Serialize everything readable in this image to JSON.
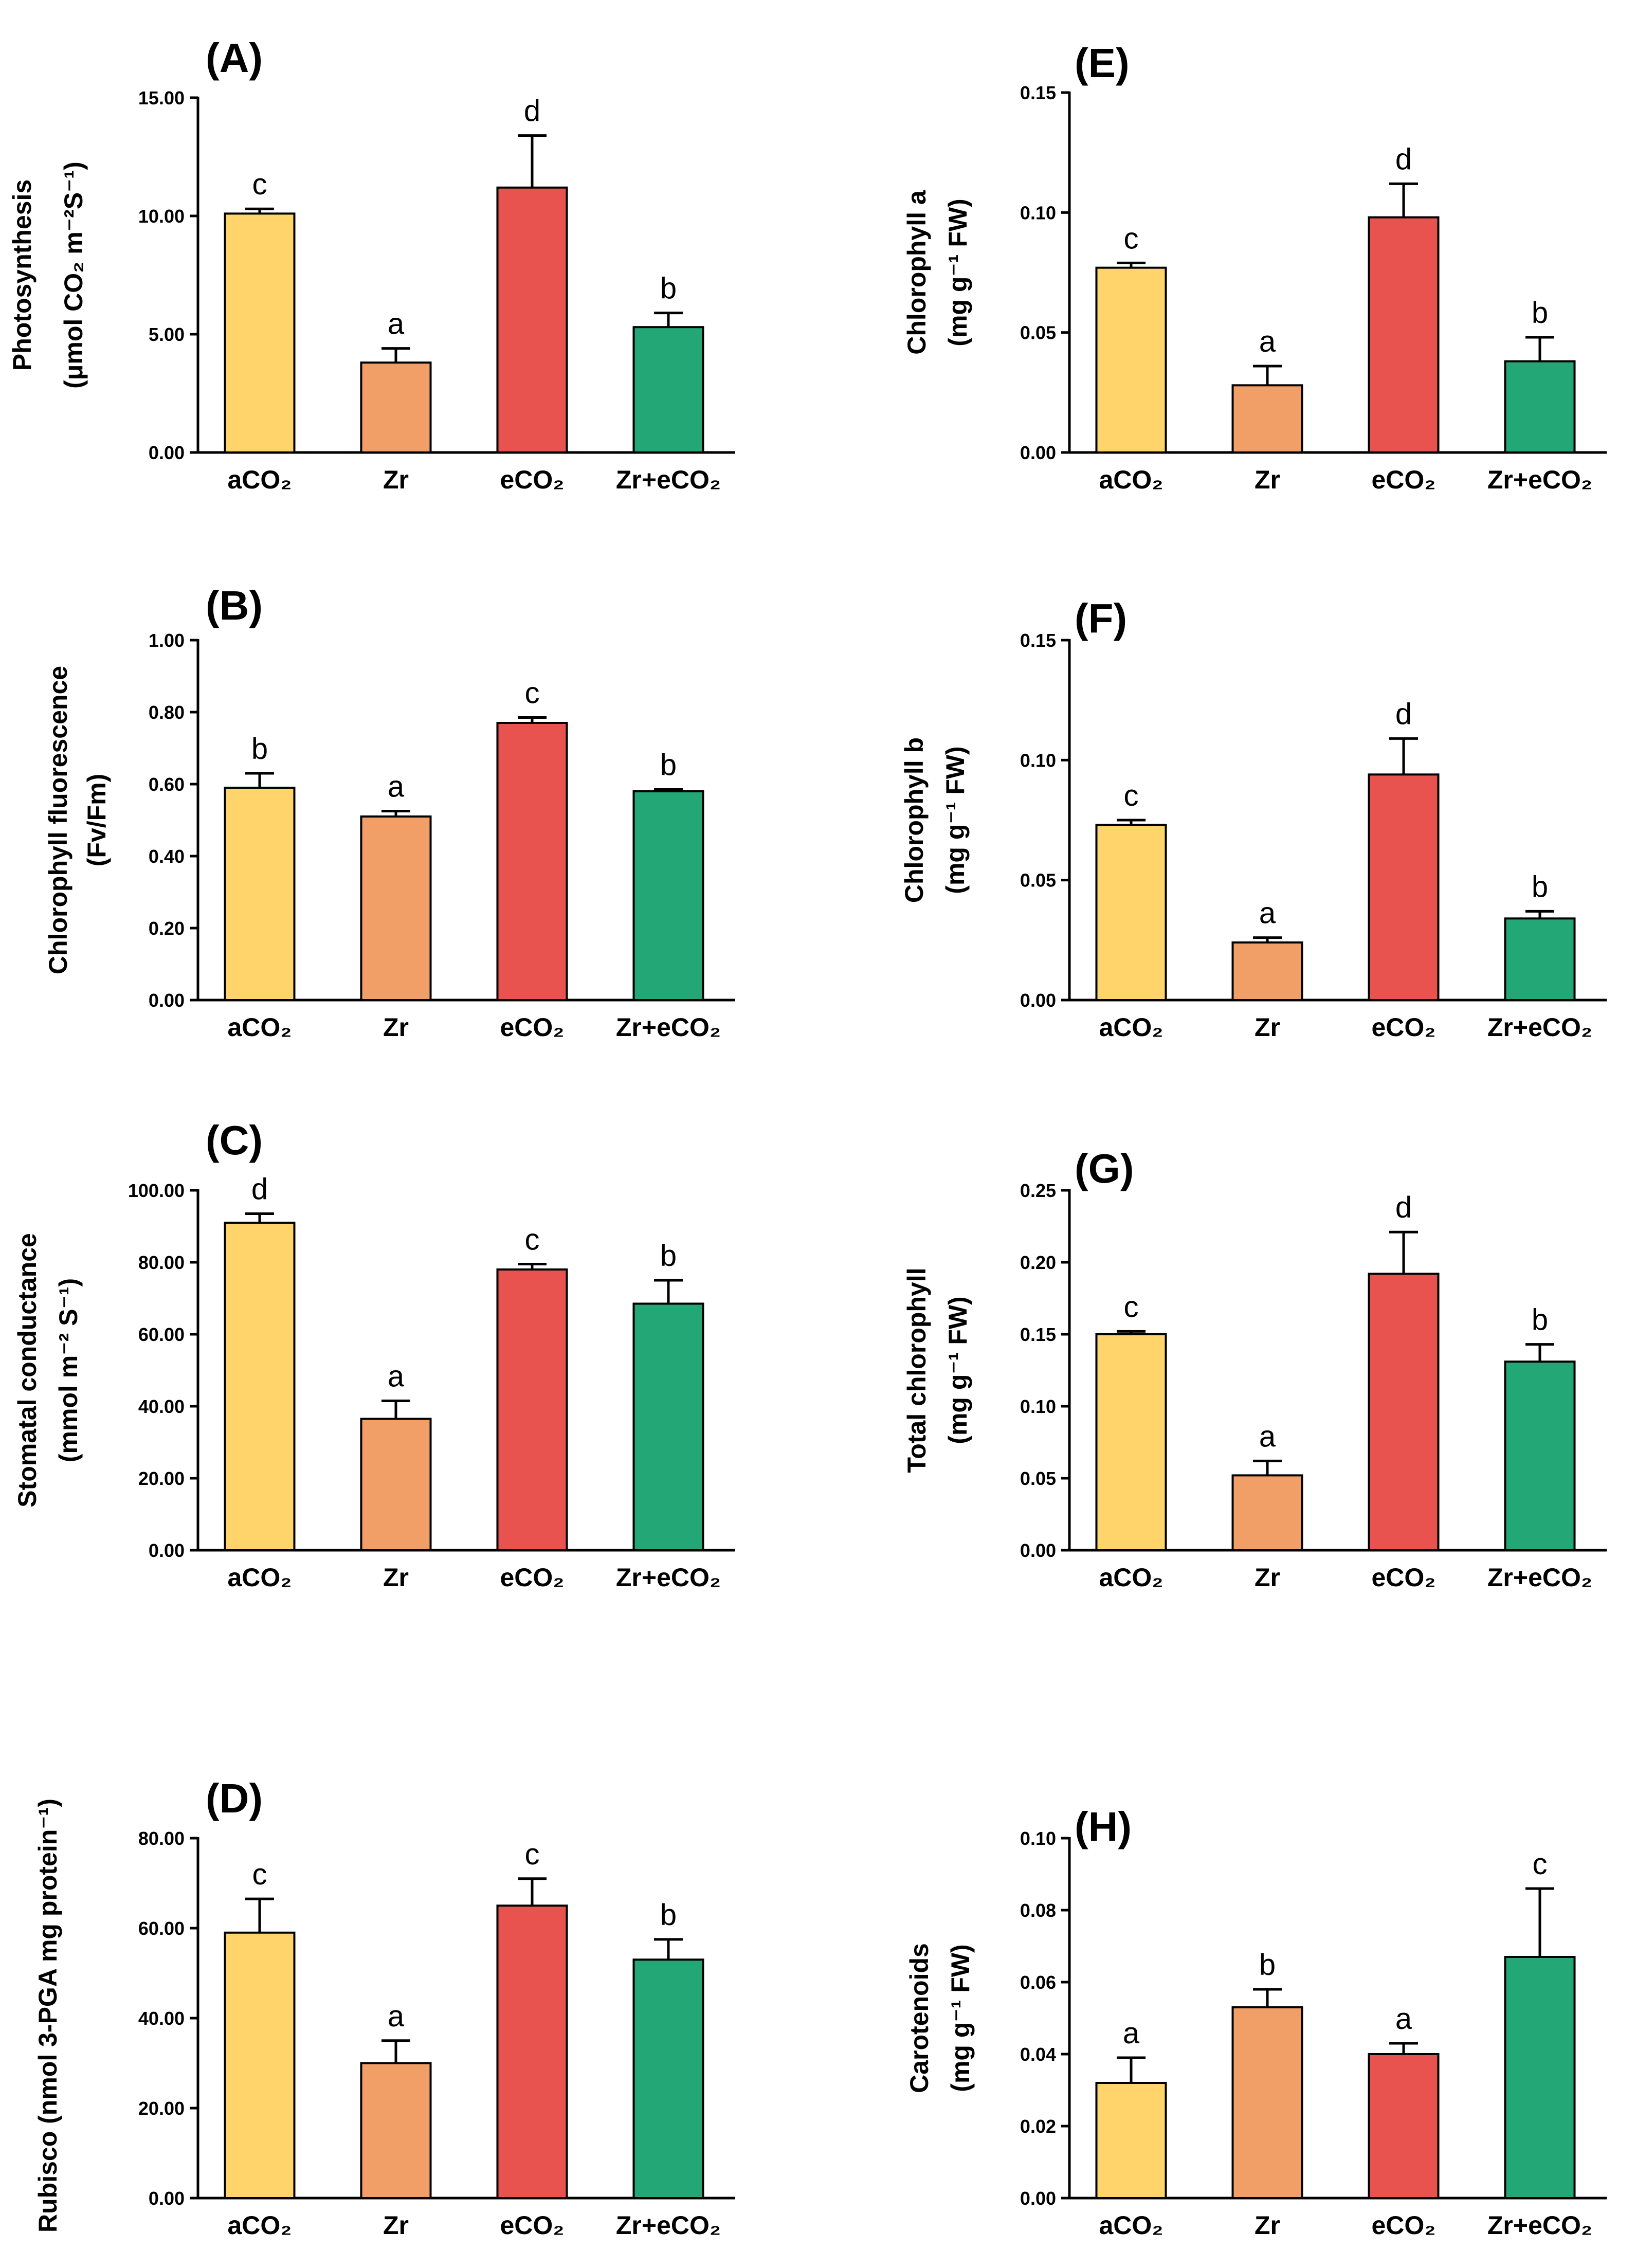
{
  "figure": {
    "colors": [
      "#FFD46B",
      "#F29E67",
      "#E8524F",
      "#24A777"
    ],
    "panels": [
      "A",
      "B",
      "C",
      "D",
      "E",
      "F",
      "G",
      "H"
    ]
  },
  "chart_data": [
    {
      "id": "A",
      "type": "bar",
      "label": "(A)",
      "ylabel": [
        "Photosynthesis",
        "(μmol CO₂ m⁻²S⁻¹)"
      ],
      "categories": [
        "aCO₂",
        "Zr",
        "eCO₂",
        "Zr+eCO₂"
      ],
      "values": [
        10.1,
        3.8,
        11.2,
        5.3
      ],
      "errors": [
        0.2,
        0.6,
        2.2,
        0.6
      ],
      "letters": [
        "c",
        "a",
        "d",
        "b"
      ],
      "ylim": [
        0,
        15
      ],
      "ticks": [
        0,
        5,
        10,
        15
      ],
      "tick_labels": [
        "0.00",
        "5.00",
        "10.00",
        "15.00"
      ]
    },
    {
      "id": "B",
      "type": "bar",
      "label": "(B)",
      "ylabel": [
        "Chlorophyll fluorescence",
        "(Fv/Fm)"
      ],
      "categories": [
        "aCO₂",
        "Zr",
        "eCO₂",
        "Zr+eCO₂"
      ],
      "values": [
        0.59,
        0.51,
        0.77,
        0.58
      ],
      "errors": [
        0.04,
        0.015,
        0.015,
        0.005
      ],
      "letters": [
        "b",
        "a",
        "c",
        "b"
      ],
      "ylim": [
        0,
        1
      ],
      "ticks": [
        0,
        0.2,
        0.4,
        0.6,
        0.8,
        1.0
      ],
      "tick_labels": [
        "0.00",
        "0.20",
        "0.40",
        "0.60",
        "0.80",
        "1.00"
      ]
    },
    {
      "id": "C",
      "type": "bar",
      "label": "(C)",
      "ylabel": [
        "Stomatal conductance",
        "(mmol m⁻² S⁻¹)"
      ],
      "categories": [
        "aCO₂",
        "Zr",
        "eCO₂",
        "Zr+eCO₂"
      ],
      "values": [
        91,
        36.5,
        78,
        68.5
      ],
      "errors": [
        2.5,
        5,
        1.5,
        6.5
      ],
      "letters": [
        "d",
        "a",
        "c",
        "b"
      ],
      "ylim": [
        0,
        100
      ],
      "ticks": [
        0,
        20,
        40,
        60,
        80,
        100
      ],
      "tick_labels": [
        "0.00",
        "20.00",
        "40.00",
        "60.00",
        "80.00",
        "100.00"
      ]
    },
    {
      "id": "D",
      "type": "bar",
      "label": "(D)",
      "ylabel": [
        "Rubisco (nmol 3-PGA mg protein⁻¹)"
      ],
      "categories": [
        "aCO₂",
        "Zr",
        "eCO₂",
        "Zr+eCO₂"
      ],
      "values": [
        59,
        30,
        65,
        53
      ],
      "errors": [
        7.5,
        5,
        6,
        4.5
      ],
      "letters": [
        "c",
        "a",
        "c",
        "b"
      ],
      "ylim": [
        0,
        80
      ],
      "ticks": [
        0,
        20,
        40,
        60,
        80
      ],
      "tick_labels": [
        "0.00",
        "20.00",
        "40.00",
        "60.00",
        "80.00"
      ]
    },
    {
      "id": "E",
      "type": "bar",
      "label": "(E)",
      "ylabel": [
        "Chlorophyll a",
        "(mg g⁻¹ FW)"
      ],
      "categories": [
        "aCO₂",
        "Zr",
        "eCO₂",
        "Zr+eCO₂"
      ],
      "values": [
        0.077,
        0.028,
        0.098,
        0.038
      ],
      "errors": [
        0.002,
        0.008,
        0.014,
        0.01
      ],
      "letters": [
        "c",
        "a",
        "d",
        "b"
      ],
      "ylim": [
        0,
        0.15
      ],
      "ticks": [
        0,
        0.05,
        0.1,
        0.15
      ],
      "tick_labels": [
        "0.00",
        "0.05",
        "0.10",
        "0.15"
      ]
    },
    {
      "id": "F",
      "type": "bar",
      "label": "(F)",
      "ylabel": [
        "Chlorophyll b",
        "(mg g⁻¹ FW)"
      ],
      "categories": [
        "aCO₂",
        "Zr",
        "eCO₂",
        "Zr+eCO₂"
      ],
      "values": [
        0.073,
        0.024,
        0.094,
        0.034
      ],
      "errors": [
        0.002,
        0.002,
        0.015,
        0.003
      ],
      "letters": [
        "c",
        "a",
        "d",
        "b"
      ],
      "ylim": [
        0,
        0.15
      ],
      "ticks": [
        0,
        0.05,
        0.1,
        0.15
      ],
      "tick_labels": [
        "0.00",
        "0.05",
        "0.10",
        "0.15"
      ]
    },
    {
      "id": "G",
      "type": "bar",
      "label": "(G)",
      "ylabel": [
        "Total chlorophyll",
        "(mg g⁻¹ FW)"
      ],
      "categories": [
        "aCO₂",
        "Zr",
        "eCO₂",
        "Zr+eCO₂"
      ],
      "values": [
        0.15,
        0.052,
        0.192,
        0.131
      ],
      "errors": [
        0.002,
        0.01,
        0.029,
        0.012
      ],
      "letters": [
        "c",
        "a",
        "d",
        "b"
      ],
      "ylim": [
        0,
        0.25
      ],
      "ticks": [
        0,
        0.05,
        0.1,
        0.15,
        0.2,
        0.25
      ],
      "tick_labels": [
        "0.00",
        "0.05",
        "0.10",
        "0.15",
        "0.20",
        "0.25"
      ]
    },
    {
      "id": "H",
      "type": "bar",
      "label": "(H)",
      "ylabel": [
        "Carotenoids",
        "(mg g⁻¹ FW)"
      ],
      "categories": [
        "aCO₂",
        "Zr",
        "eCO₂",
        "Zr+eCO₂"
      ],
      "values": [
        0.032,
        0.053,
        0.04,
        0.067
      ],
      "errors": [
        0.007,
        0.005,
        0.003,
        0.019
      ],
      "letters": [
        "a",
        "b",
        "a",
        "c"
      ],
      "ylim": [
        0,
        0.1
      ],
      "ticks": [
        0,
        0.02,
        0.04,
        0.06,
        0.08,
        0.1
      ],
      "tick_labels": [
        "0.00",
        "0.02",
        "0.04",
        "0.06",
        "0.08",
        "0.10"
      ]
    }
  ]
}
